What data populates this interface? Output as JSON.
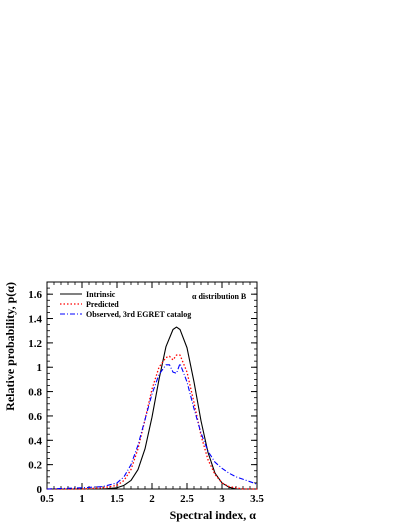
{
  "chart_data": {
    "type": "line",
    "title": "",
    "annotation": "α distribution B",
    "xlabel": "Spectral index, α",
    "ylabel": "Relative probability, p(α)",
    "xlim": [
      0.5,
      3.5
    ],
    "ylim": [
      0,
      1.7
    ],
    "xticks": [
      "0.5",
      "1",
      "1.5",
      "2",
      "2.5",
      "3",
      "3.5"
    ],
    "yticks": [
      "0",
      "0.2",
      "0.4",
      "0.6",
      "0.8",
      "1",
      "1.2",
      "1.4",
      "1.6"
    ],
    "grid": false,
    "legend_position": "top-left",
    "series": [
      {
        "name": "Intrinsic",
        "color": "#000000",
        "dash": "solid",
        "x": [
          0.5,
          1.0,
          1.3,
          1.5,
          1.6,
          1.7,
          1.8,
          1.9,
          2.0,
          2.1,
          2.2,
          2.3,
          2.35,
          2.4,
          2.5,
          2.6,
          2.7,
          2.8,
          2.9,
          3.0,
          3.1,
          3.2,
          3.5
        ],
        "y": [
          0.0,
          0.0,
          0.0,
          0.01,
          0.03,
          0.07,
          0.16,
          0.33,
          0.59,
          0.9,
          1.17,
          1.31,
          1.33,
          1.31,
          1.16,
          0.88,
          0.56,
          0.3,
          0.13,
          0.05,
          0.015,
          0.0,
          0.0
        ]
      },
      {
        "name": "Predicted",
        "color": "#ff0000",
        "dash": "dotted",
        "x": [
          0.5,
          1.0,
          1.3,
          1.5,
          1.6,
          1.7,
          1.8,
          1.9,
          2.0,
          2.1,
          2.2,
          2.25,
          2.3,
          2.35,
          2.4,
          2.5,
          2.6,
          2.7,
          2.8,
          2.9,
          3.0,
          3.1,
          3.2,
          3.3,
          3.5
        ],
        "y": [
          0.0,
          0.0,
          0.01,
          0.03,
          0.07,
          0.16,
          0.33,
          0.57,
          0.82,
          1.0,
          1.08,
          1.09,
          1.06,
          1.1,
          1.1,
          0.96,
          0.71,
          0.44,
          0.24,
          0.12,
          0.05,
          0.02,
          0.01,
          0.0,
          0.0
        ]
      },
      {
        "name": "Observed, 3rd EGRET catalog",
        "color": "#0000ff",
        "dash": "dashdot",
        "x": [
          0.5,
          1.0,
          1.3,
          1.5,
          1.6,
          1.7,
          1.8,
          1.9,
          2.0,
          2.1,
          2.2,
          2.25,
          2.3,
          2.35,
          2.4,
          2.5,
          2.6,
          2.7,
          2.8,
          2.9,
          3.0,
          3.1,
          3.2,
          3.3,
          3.4,
          3.5
        ],
        "y": [
          0.0,
          0.01,
          0.02,
          0.05,
          0.1,
          0.2,
          0.36,
          0.57,
          0.78,
          0.94,
          1.02,
          1.02,
          0.96,
          0.95,
          1.03,
          0.88,
          0.66,
          0.46,
          0.31,
          0.22,
          0.17,
          0.13,
          0.1,
          0.08,
          0.06,
          0.04
        ]
      }
    ]
  }
}
